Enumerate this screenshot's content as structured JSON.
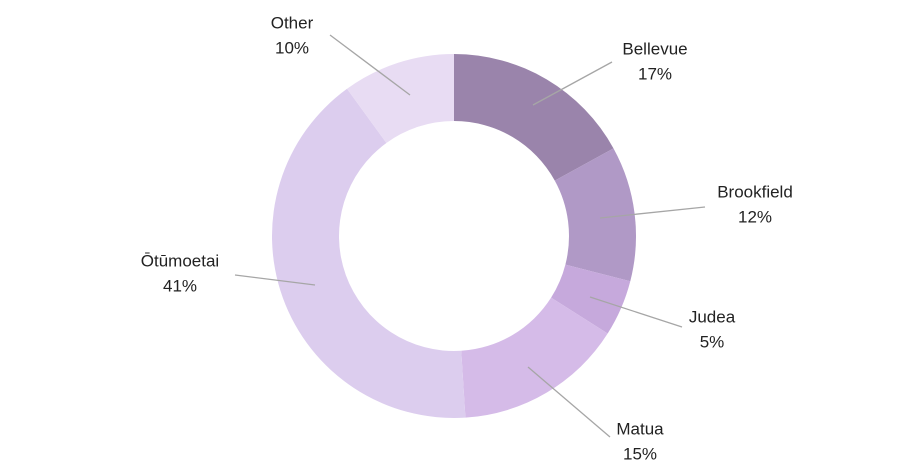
{
  "chart_data": {
    "type": "donut",
    "categories": [
      "Bellevue",
      "Brookfield",
      "Judea",
      "Matua",
      "Ōtūmoetai",
      "Other"
    ],
    "values": [
      17,
      12,
      5,
      15,
      41,
      10
    ],
    "value_labels": [
      "17%",
      "12%",
      "5%",
      "15%",
      "41%",
      "10%"
    ],
    "colors": [
      "#9a84ab",
      "#b099c6",
      "#c6a9dc",
      "#d5bbe8",
      "#dccdee",
      "#e8dcf3"
    ]
  }
}
